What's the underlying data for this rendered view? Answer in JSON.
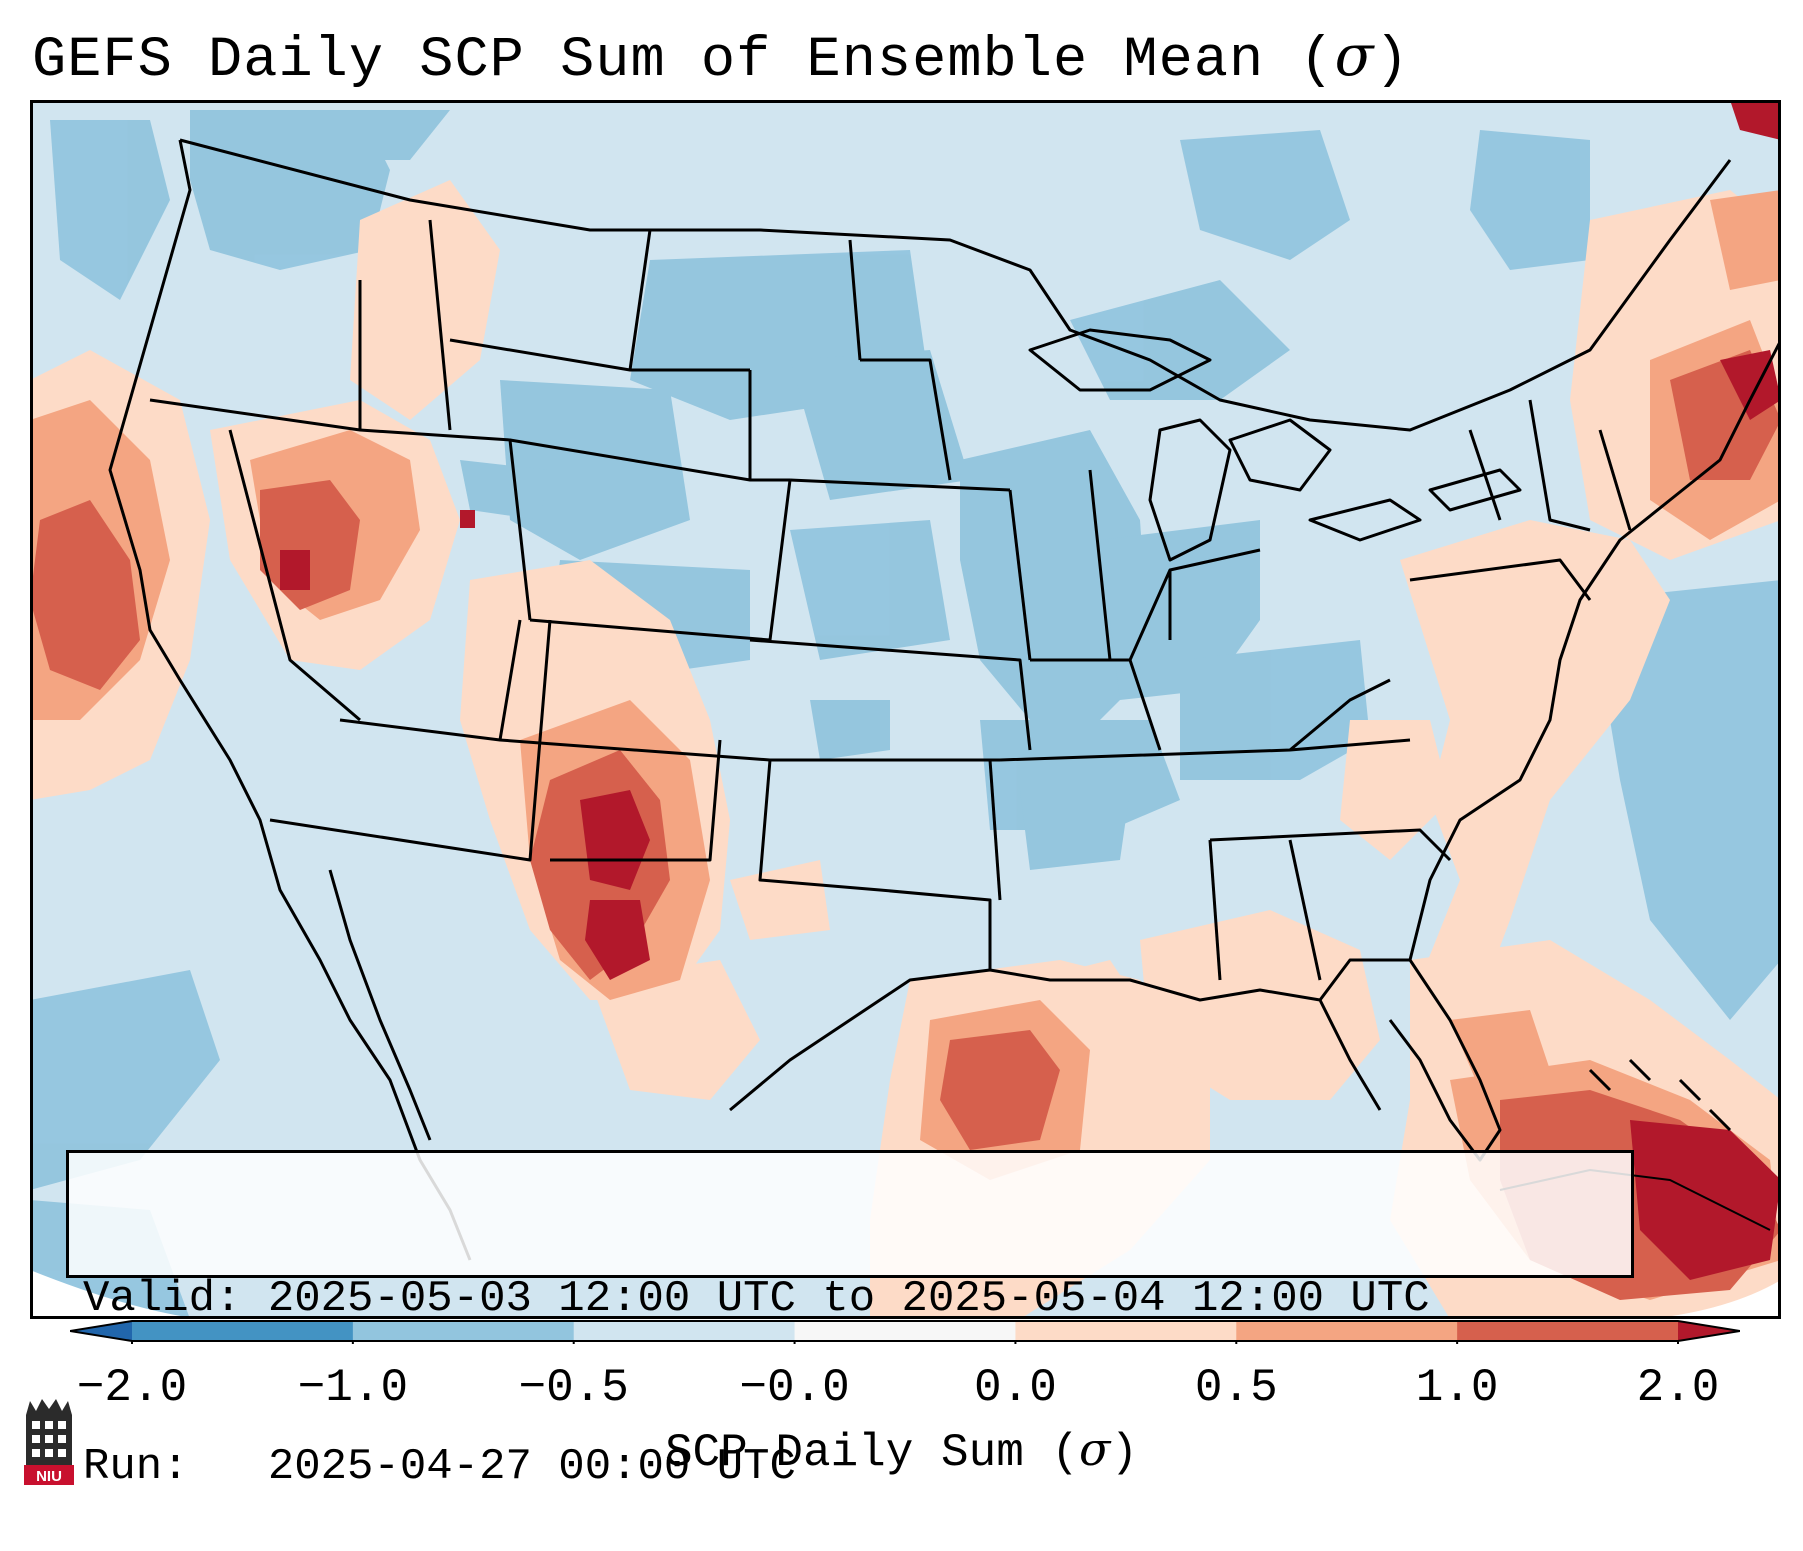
{
  "title": {
    "text": "GEFS Daily SCP Sum of Ensemble Mean (",
    "symbol": "σ",
    "close": ")"
  },
  "info": {
    "valid_label": "Valid:",
    "valid_value": "2025-05-03 12:00 UTC to 2025-05-04 12:00 UTC",
    "run_label": "Run:",
    "run_value": "2025-04-27 00:00 UTC"
  },
  "colorbar": {
    "label_text": "SCP Daily Sum (",
    "label_symbol": "σ",
    "label_close": ")",
    "ticks": [
      "−2.0",
      "−1.0",
      "−0.5",
      "−0.0",
      "0.0",
      "0.5",
      "1.0",
      "2.0"
    ],
    "bins": [
      {
        "range": "< -2.0",
        "color": "#2166ac"
      },
      {
        "range": "-2.0 to -1.0",
        "color": "#4393c3"
      },
      {
        "range": "-1.0 to -0.5",
        "color": "#92c5de"
      },
      {
        "range": "-0.5 to -0.0",
        "color": "#d1e5f0"
      },
      {
        "range": "-0.0 to 0.0",
        "color": "#f7f7f7"
      },
      {
        "range": "0.0 to 0.5",
        "color": "#fddbc7"
      },
      {
        "range": "0.5 to 1.0",
        "color": "#f4a582"
      },
      {
        "range": "1.0 to 2.0",
        "color": "#d6604d"
      },
      {
        "range": "> 2.0",
        "color": "#b2182b"
      }
    ]
  },
  "logo": {
    "text": "NIU",
    "icon": "niu-tower-logo"
  },
  "map_colors": {
    "background": "#d1e5f0",
    "light_blue": "#92c5de",
    "light_red": "#fddbc7",
    "mid_red": "#f4a582",
    "red": "#d6604d",
    "dark_red": "#b2182b"
  }
}
